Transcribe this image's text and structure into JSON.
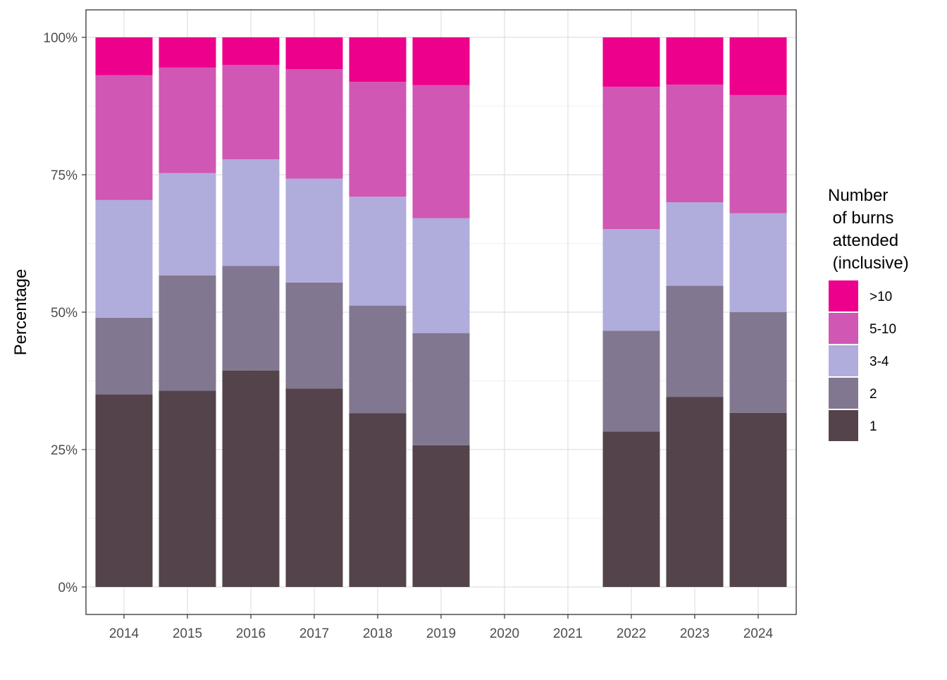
{
  "chart_data": {
    "type": "bar",
    "stacked": true,
    "categories": [
      "2014",
      "2015",
      "2016",
      "2017",
      "2018",
      "2019",
      "2020",
      "2021",
      "2022",
      "2023",
      "2024"
    ],
    "series": [
      {
        "name": "1",
        "color": "#54434B",
        "values": [
          35.0,
          35.7,
          39.4,
          36.1,
          31.6,
          25.8,
          null,
          null,
          28.3,
          34.6,
          31.7
        ]
      },
      {
        "name": "2",
        "color": "#827790",
        "values": [
          14.0,
          21.0,
          19.0,
          19.3,
          19.6,
          20.4,
          null,
          null,
          18.3,
          20.2,
          18.3
        ]
      },
      {
        "name": "3-4",
        "color": "#B0ADDC",
        "values": [
          21.4,
          18.6,
          19.4,
          18.9,
          19.8,
          20.9,
          null,
          null,
          18.5,
          15.2,
          18.0
        ]
      },
      {
        "name": "5-10",
        "color": "#D057B3",
        "values": [
          22.7,
          19.2,
          17.2,
          19.9,
          20.9,
          24.2,
          null,
          null,
          25.9,
          21.4,
          21.5
        ]
      },
      {
        "name": ">10",
        "color": "#EC008C",
        "values": [
          6.9,
          5.5,
          5.0,
          5.8,
          8.1,
          8.7,
          null,
          null,
          9.0,
          8.6,
          10.5
        ]
      }
    ],
    "xlabel": "",
    "ylabel": "Percentage",
    "ylim": [
      0,
      100
    ],
    "yticks": [
      0,
      25,
      50,
      75,
      100
    ],
    "ytick_labels": [
      "0%",
      "25%",
      "50%",
      "75%",
      "100%"
    ],
    "grid": true,
    "legend": {
      "title_lines": [
        "Number",
        " of burns",
        " attended",
        " (inclusive)"
      ],
      "position": "right",
      "order": [
        ">10",
        "5-10",
        "3-4",
        "2",
        "1"
      ]
    }
  }
}
